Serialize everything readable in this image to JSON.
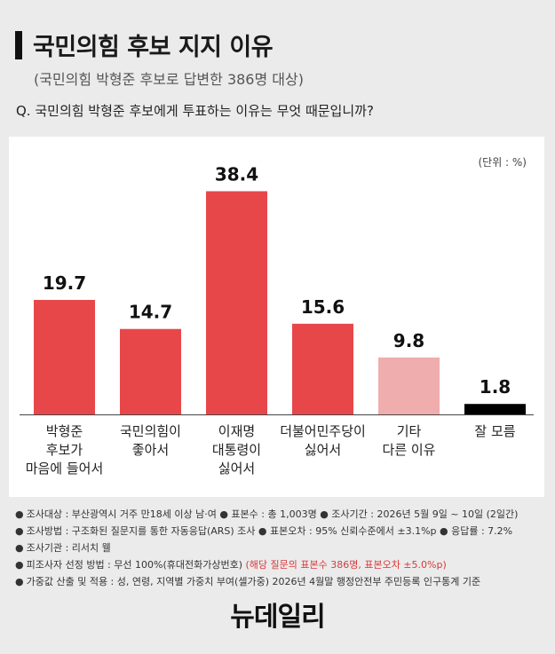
{
  "header": {
    "title": "국민의힘 후보 지지 이유",
    "subtitle": "(국민의힘 박형준 후보로 답변한 386명 대상)",
    "question": "Q. 국민의힘 박형준 후보에게 투표하는 이유는 무엇 때문입니까?"
  },
  "chart_data": {
    "type": "bar",
    "unit_label": "(단위 : %)",
    "categories": [
      [
        "박형준",
        "후보가",
        "마음에 들어서"
      ],
      [
        "국민의힘이",
        "좋아서"
      ],
      [
        "이재명",
        "대통령이",
        "싫어서"
      ],
      [
        "더불어민주당이",
        "싫어서"
      ],
      [
        "기타",
        "다른 이유"
      ],
      [
        "잘 모름"
      ]
    ],
    "values": [
      19.7,
      14.7,
      38.4,
      15.6,
      9.8,
      1.8
    ],
    "value_labels": [
      "19.7",
      "14.7",
      "38.4",
      "15.6",
      "9.8",
      "1.8"
    ],
    "bar_colors": [
      "#e8474a",
      "#e8474a",
      "#e8474a",
      "#e8474a",
      "#f0adae",
      "#000000"
    ],
    "ylim": [
      0,
      40
    ]
  },
  "notes": [
    {
      "text": "조사대상 : 부산광역시 거주 만18세 이상 남·여  ●  표본수 : 총 1,003명  ●  조사기간 : 2026년 5월 9일 ~ 10일 (2일간)",
      "red": ""
    },
    {
      "text": "조사방법 : 구조화된 질문지를 통한 자동응답(ARS) 조사  ●  표본오차 : 95% 신뢰수준에서 ±3.1%p  ●  응답률 : 7.2%",
      "red": ""
    },
    {
      "text": "조사기관 : 리서치 웰",
      "red": ""
    },
    {
      "text": "피조사자 선정 방법 : 무선 100%(휴대전화가상번호) ",
      "red": "(해당 질문의 표본수 386명, 표본오차 ±5.0%p)"
    },
    {
      "text": "가중값 산출 및 적용 : 성, 연령, 지역별 가중치 부여(셀가중)  2026년 4월말 행정안전부 주민등록 인구통계 기준",
      "red": ""
    }
  ],
  "logo": {
    "text": "뉴데일리"
  }
}
